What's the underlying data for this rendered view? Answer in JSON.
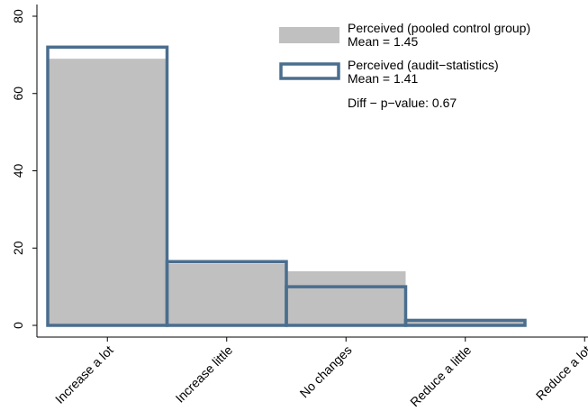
{
  "chart_data": {
    "type": "bar",
    "categories": [
      "Increase a lot",
      "Increase little",
      "No changes",
      "Reduce a little",
      "Reduce a lot"
    ],
    "ylim": [
      0,
      80
    ],
    "yticks": [
      0,
      20,
      40,
      60,
      80
    ],
    "grid": false,
    "legend_position": "top-right",
    "series": [
      {
        "name": "Perceived (pooled control group)",
        "values": [
          69,
          16,
          14,
          1,
          0
        ],
        "style": "filled",
        "color": "#c0c0c0",
        "legend_lines": [
          "Perceived (pooled control group)",
          "Mean = 1.45"
        ]
      },
      {
        "name": "Perceived (audit−statistics)",
        "values": [
          72,
          16.5,
          10,
          1.3,
          0
        ],
        "style": "outline",
        "color": "#4a6e8e",
        "legend_lines": [
          "Perceived (audit−statistics)",
          "Mean = 1.41"
        ]
      }
    ],
    "annotation": "Diff − p−value: 0.67"
  }
}
